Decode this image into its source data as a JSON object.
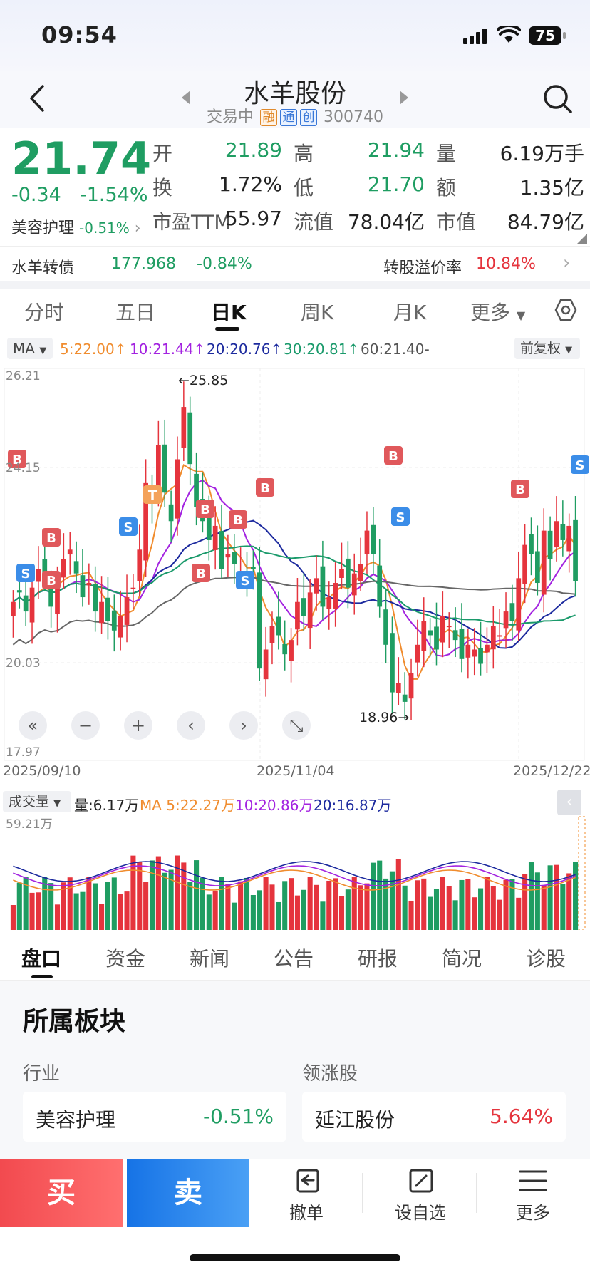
{
  "status": {
    "time": "09:54",
    "battery": "75"
  },
  "header": {
    "title": "水羊股份",
    "trading_state": "交易中",
    "tags": [
      "融",
      "通",
      "创"
    ],
    "code": "300740"
  },
  "quote": {
    "price": "21.74",
    "change": "-0.34",
    "change_pct": "-1.54%",
    "sector_name": "美容护理",
    "sector_change": "-0.51%",
    "fields": [
      {
        "label": "开",
        "value": "21.89"
      },
      {
        "label": "高",
        "value": "21.94"
      },
      {
        "label": "量",
        "value": "6.19万手"
      },
      {
        "label": "换",
        "value": "1.72%"
      },
      {
        "label": "低",
        "value": "21.70"
      },
      {
        "label": "额",
        "value": "1.35亿"
      },
      {
        "label": "市盈TTM",
        "value": "55.97"
      },
      {
        "label": "流值",
        "value": "78.04亿"
      },
      {
        "label": "市值",
        "value": "84.79亿"
      }
    ]
  },
  "bond": {
    "name": "水羊转债",
    "price": "177.968",
    "change": "-0.84%",
    "premium_label": "转股溢价率",
    "premium": "10.84%"
  },
  "period_tabs": [
    "分时",
    "五日",
    "日K",
    "周K",
    "月K",
    "更多"
  ],
  "active_period": "日K",
  "ma": {
    "label": "MA",
    "ma5": "5:22.00",
    "ma10": "10:21.44",
    "ma20": "20:20.76",
    "ma30": "30:20.81",
    "ma60": "60:21.40-",
    "adjust": "前复权"
  },
  "chart_data": {
    "type": "candlestick",
    "y_axis_labels": [
      "26.21",
      "24.15",
      "20.03",
      "17.97"
    ],
    "x_axis_labels": [
      "2025/09/10",
      "2025/11/04",
      "2025/12/22"
    ],
    "annotations": {
      "high": "←25.85",
      "low": "18.96→"
    },
    "signals": [
      "B",
      "S",
      "T"
    ],
    "colors": {
      "up": "#e5343d",
      "down": "#1f9d62",
      "ma5": "#f08c2e",
      "ma10": "#a323e0",
      "ma20": "#1c2a9e",
      "ma30": "#1a9a6b",
      "ma60": "#666666"
    }
  },
  "volume": {
    "label": "成交量",
    "vol": "量:6.17万",
    "ma5": "MA 5:22.27万",
    "ma10": "10:20.86万",
    "ma20": "20:16.87万",
    "max": "59.21万"
  },
  "bottom_tabs": [
    "盘口",
    "资金",
    "新闻",
    "公告",
    "研报",
    "简况",
    "诊股"
  ],
  "section": {
    "title": "所属板块",
    "industry_label": "行业",
    "leader_label": "领涨股",
    "industry_name": "美容护理",
    "industry_change": "-0.51%",
    "leader_name": "延江股份",
    "leader_change": "5.64%"
  },
  "actions": {
    "buy": "买",
    "sell": "卖",
    "cancel": "撤单",
    "watch": "设自选",
    "more": "更多"
  }
}
